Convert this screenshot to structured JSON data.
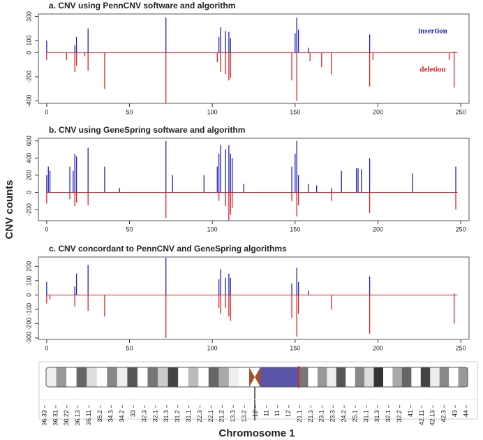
{
  "ylabel": "CNV counts",
  "chart_data": [
    {
      "type": "spike",
      "title": "a. CNV using PennCNV software and algorithm",
      "legend": true,
      "xlim": [
        -5,
        255
      ],
      "xticks": [
        0,
        50,
        100,
        150,
        200,
        250
      ],
      "ylim": [
        -420,
        320
      ],
      "yticks": [
        -400,
        -200,
        0,
        100,
        300
      ],
      "series": [
        {
          "name": "insertion",
          "color": "#1f1fbf",
          "x": [
            0,
            17,
            18,
            25,
            72,
            104,
            105,
            108,
            110,
            111,
            150,
            151,
            152,
            158,
            195,
            246
          ],
          "values": [
            100,
            60,
            130,
            200,
            290,
            130,
            210,
            180,
            170,
            120,
            160,
            290,
            190,
            40,
            150,
            10
          ]
        },
        {
          "name": "deletion",
          "color": "#e02020",
          "x": [
            0,
            12,
            17,
            18,
            23,
            25,
            35,
            72,
            103,
            105,
            108,
            110,
            111,
            148,
            151,
            159,
            166,
            172,
            195,
            197,
            243,
            246
          ],
          "values": [
            -60,
            -60,
            -160,
            -110,
            -30,
            -150,
            -300,
            -420,
            -80,
            -160,
            -180,
            -230,
            -210,
            -230,
            -400,
            -70,
            -120,
            -180,
            -280,
            -60,
            -60,
            -290
          ]
        }
      ]
    },
    {
      "type": "spike",
      "title": "b. CNV using GeneSpring software and algorithm",
      "legend": false,
      "xlim": [
        -5,
        255
      ],
      "xticks": [
        0,
        50,
        100,
        150,
        200,
        250
      ],
      "ylim": [
        -330,
        630
      ],
      "yticks": [
        -200,
        0,
        200,
        400,
        600
      ],
      "series": [
        {
          "name": "insertion",
          "color": "#1f1fbf",
          "x": [
            0,
            1,
            2,
            14,
            16,
            17,
            18,
            25,
            35,
            44,
            72,
            76,
            95,
            103,
            104,
            105,
            108,
            110,
            111,
            112,
            119,
            148,
            150,
            151,
            152,
            158,
            163,
            172,
            178,
            187,
            188,
            190,
            195,
            221,
            247
          ],
          "values": [
            200,
            300,
            250,
            300,
            250,
            450,
            420,
            520,
            300,
            50,
            600,
            200,
            200,
            300,
            450,
            550,
            500,
            550,
            450,
            400,
            100,
            300,
            450,
            600,
            200,
            100,
            80,
            50,
            250,
            280,
            280,
            270,
            400,
            220,
            300
          ]
        },
        {
          "name": "deletion",
          "color": "#e02020",
          "x": [
            0,
            14,
            17,
            18,
            25,
            72,
            104,
            108,
            110,
            111,
            112,
            148,
            151,
            152,
            172,
            195,
            247
          ],
          "values": [
            -130,
            -80,
            -160,
            -120,
            -150,
            -300,
            -100,
            -160,
            -330,
            -260,
            -180,
            -100,
            -280,
            -150,
            -100,
            -240,
            -200
          ]
        }
      ]
    },
    {
      "type": "spike",
      "title": "c. CNV concordant to PennCNV and GeneSpring algorithms",
      "legend": false,
      "xlim": [
        -5,
        255
      ],
      "xticks": [
        0,
        50,
        100,
        150,
        200,
        250
      ],
      "ylim": [
        -310,
        265
      ],
      "yticks": [
        -300,
        -200,
        -100,
        0,
        100,
        200
      ],
      "series": [
        {
          "name": "insertion",
          "color": "#1f1fbf",
          "x": [
            0,
            17,
            18,
            25,
            72,
            104,
            105,
            108,
            110,
            111,
            148,
            151,
            152,
            158,
            195,
            246
          ],
          "values": [
            90,
            60,
            150,
            210,
            260,
            110,
            180,
            120,
            150,
            120,
            80,
            190,
            90,
            30,
            130,
            10
          ]
        },
        {
          "name": "deletion",
          "color": "#e02020",
          "x": [
            0,
            2,
            17,
            25,
            35,
            72,
            104,
            105,
            108,
            110,
            111,
            148,
            151,
            152,
            172,
            195,
            246
          ],
          "values": [
            -60,
            -30,
            -80,
            -110,
            -150,
            -300,
            -90,
            -130,
            -90,
            -150,
            -180,
            -160,
            -290,
            -130,
            -100,
            -270,
            -200
          ]
        }
      ]
    }
  ],
  "ideogram": {
    "xlabel": "Chromosome 1",
    "bands": [
      "36.33",
      "36.31",
      "36.22",
      "36.13",
      "36.11",
      "35.2",
      "34.3",
      "34.2",
      "33",
      "32.3",
      "32.1",
      "31.3",
      "31.2",
      "31.1",
      "22.3",
      "22.1",
      "21.2",
      "13.3",
      "13.2",
      "12",
      "11",
      "11",
      "12",
      "21.1",
      "21.3",
      "23.1",
      "23.3",
      "24.2",
      "25.1",
      "31.1",
      "31.3",
      "32.1",
      "32.2",
      "41",
      "42.11",
      "42.13",
      "42.3",
      "43",
      "44"
    ]
  }
}
